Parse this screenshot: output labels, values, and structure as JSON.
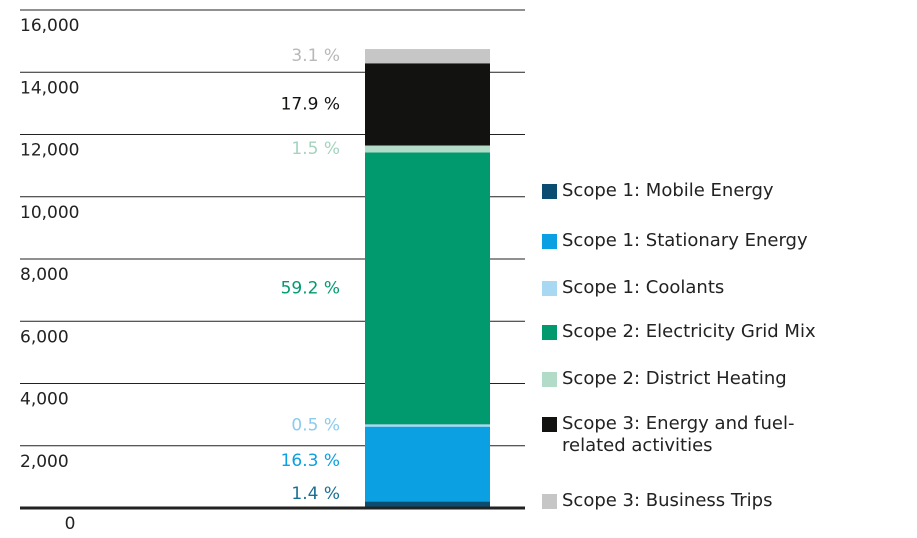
{
  "chart_data": {
    "type": "stacked_bar",
    "ylim": [
      0,
      16000
    ],
    "yticks": [
      0,
      {
        "value": 2000,
        "label": "2,000"
      },
      {
        "value": 4000,
        "label": "4,000"
      },
      {
        "value": 6000,
        "label": "6,000"
      },
      {
        "value": 8000,
        "label": "8,000"
      },
      {
        "value": 10000,
        "label": "10,000"
      },
      {
        "value": 12000,
        "label": "12,000"
      },
      {
        "value": 14000,
        "label": "14,000"
      },
      {
        "value": 16000,
        "label": "16,000"
      }
    ],
    "grid": true,
    "series": [
      {
        "name": "Scope 1: Mobile Energy",
        "color": "#0b4d70",
        "label_color": "#1a6e96",
        "values": [
          207
        ],
        "value_labels": [
          "1.4 %"
        ]
      },
      {
        "name": "Scope 1: Stationary Energy",
        "color": "#0aa0e2",
        "label_color": "#0aa0e2",
        "values": [
          2406
        ],
        "value_labels": [
          "16.3 %"
        ]
      },
      {
        "name": "Scope 1: Coolants",
        "color": "#a8d8f2",
        "label_color": "#8ccbee",
        "values": [
          74
        ],
        "value_labels": [
          "0.5 %"
        ]
      },
      {
        "name": "Scope 2: Electricity Grid Mix",
        "color": "#009a6e",
        "label_color": "#009a6e",
        "values": [
          8738
        ],
        "value_labels": [
          "59.2 %"
        ]
      },
      {
        "name": "Scope 2: District Heating",
        "color": "#b2dcc8",
        "label_color": "#a4d4bd",
        "values": [
          221
        ],
        "value_labels": [
          "1.5 %"
        ]
      },
      {
        "name": "Scope 3: Energy and fuel-related activities",
        "color": "#121210",
        "label_color": "#121210",
        "values": [
          2642
        ],
        "value_labels": [
          "17.9 %"
        ]
      },
      {
        "name": "Scope 3: Business Trips",
        "color": "#c6c6c6",
        "label_color": "#b8b8b8",
        "values": [
          458
        ],
        "value_labels": [
          "3.1 %"
        ]
      }
    ]
  }
}
